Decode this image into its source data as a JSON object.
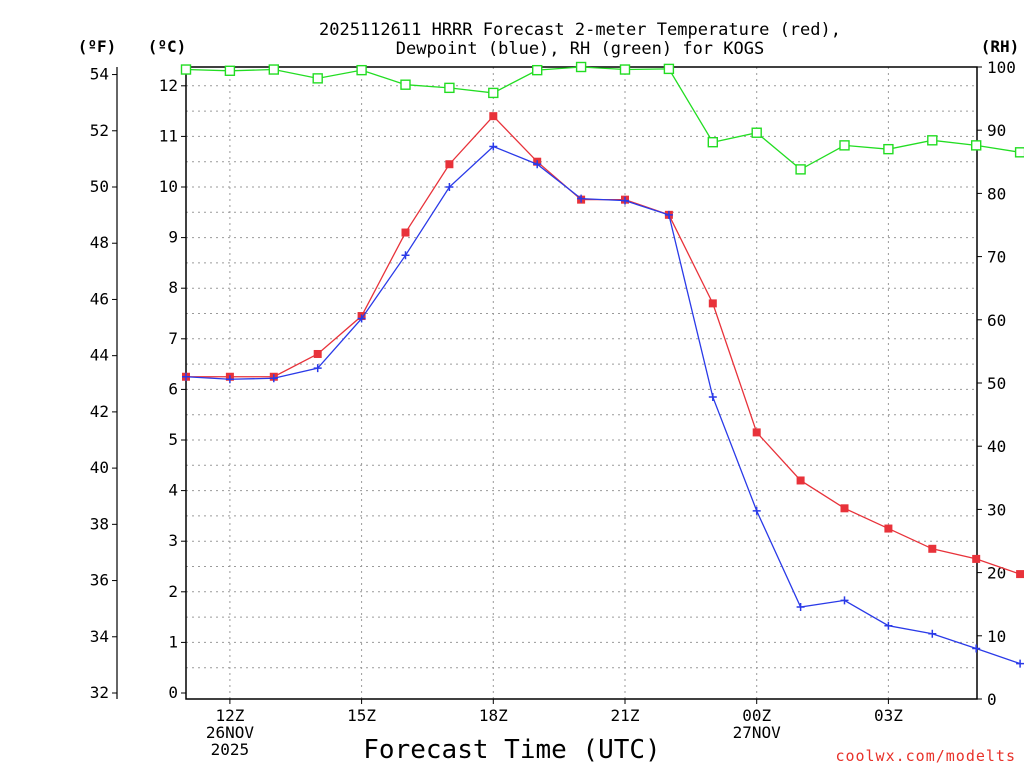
{
  "chart_data": {
    "type": "line",
    "title": [
      "2025112611 HRRR Forecast 2-meter Temperature (red),",
      "Dewpoint (blue), RH (green) for KOGS"
    ],
    "xlabel": "Forecast Time (UTC)",
    "credit": "coolwx.com/modelts",
    "units": {
      "left_outer": "(ºF)",
      "left_inner": "(ºC)",
      "right": "(RH)"
    },
    "x_hours_from_11z": [
      0,
      1,
      2,
      3,
      4,
      5,
      6,
      7,
      8,
      9,
      10,
      11,
      12,
      13,
      14,
      15,
      16,
      17,
      18,
      19
    ],
    "x_ticks": [
      {
        "hour": 1,
        "labels": [
          "12Z",
          "26NOV",
          "2025"
        ]
      },
      {
        "hour": 4,
        "labels": [
          "15Z"
        ]
      },
      {
        "hour": 7,
        "labels": [
          "18Z"
        ]
      },
      {
        "hour": 10,
        "labels": [
          "21Z"
        ]
      },
      {
        "hour": 13,
        "labels": [
          "00Z",
          "27NOV"
        ]
      },
      {
        "hour": 16,
        "labels": [
          "03Z"
        ]
      }
    ],
    "y_celsius": {
      "range": [
        0,
        12
      ],
      "ticks": [
        0,
        1,
        2,
        3,
        4,
        5,
        6,
        7,
        8,
        9,
        10,
        11,
        12
      ]
    },
    "y_fahrenheit": {
      "ticks": [
        32,
        34,
        36,
        38,
        40,
        42,
        44,
        46,
        48,
        50,
        52,
        54
      ]
    },
    "y_rh": {
      "range": [
        0,
        100
      ],
      "ticks": [
        0,
        10,
        20,
        30,
        40,
        50,
        60,
        70,
        80,
        90,
        100
      ]
    },
    "series": [
      {
        "name": "Temperature",
        "axis": "C",
        "color": "#e8323a",
        "marker": "square-filled",
        "values": [
          6.25,
          6.25,
          6.25,
          6.7,
          7.45,
          9.1,
          10.45,
          11.4,
          10.5,
          9.75,
          9.75,
          9.45,
          7.7,
          5.15,
          4.2,
          3.65,
          3.25,
          2.85,
          2.65,
          2.35
        ]
      },
      {
        "name": "Dewpoint",
        "axis": "C",
        "color": "#2a3ae8",
        "marker": "plus",
        "values": [
          6.25,
          6.2,
          6.22,
          6.42,
          7.4,
          8.65,
          10.0,
          10.8,
          10.45,
          9.77,
          9.73,
          9.45,
          5.85,
          3.6,
          1.7,
          1.83,
          1.33,
          1.17,
          0.88,
          0.58
        ]
      },
      {
        "name": "RH",
        "axis": "RH",
        "color": "#22dd22",
        "marker": "square-open",
        "values": [
          99.6,
          99.4,
          99.6,
          98.2,
          99.5,
          97.2,
          96.7,
          95.9,
          99.5,
          100,
          99.6,
          99.7,
          88.1,
          89.6,
          83.8,
          87.6,
          87.0,
          88.4,
          87.6,
          86.5
        ]
      }
    ]
  }
}
